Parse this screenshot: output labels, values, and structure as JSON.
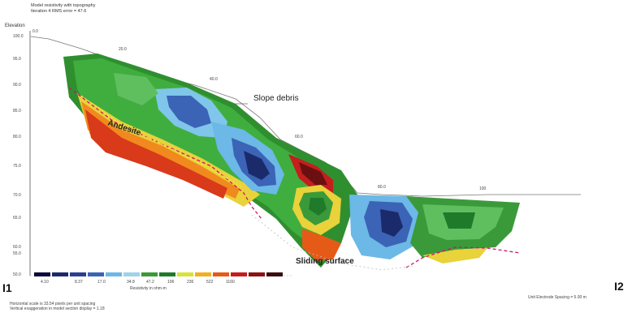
{
  "header": {
    "line1": "Model resistivity with topography",
    "line2": "Iteration 4 RMS error = 47.6"
  },
  "axis": {
    "title": "Elevation",
    "ticks": [
      "100.0",
      "95.0",
      "90.0",
      "85.0",
      "80.0",
      "75.0",
      "70.0",
      "65.0",
      "60.0",
      "55.0",
      "50.0"
    ],
    "distance_labels": [
      "0.0",
      "20.0",
      "40.0",
      "60.0",
      "80.0",
      "100"
    ]
  },
  "annotations": {
    "slope_debris": "Slope debris",
    "andesite": "Andesite",
    "sliding_surface": "Sliding surface"
  },
  "legend": {
    "values": [
      "4.10",
      "8.37",
      "17.0",
      "34.8",
      "47.2",
      "106",
      "236",
      "522",
      "1160"
    ],
    "title": "Resistivity in ohm-m",
    "colors": [
      "#0a0a3c",
      "#1b2a6a",
      "#2a3f8f",
      "#3b63b6",
      "#6cb8e6",
      "#9ed3ea",
      "#3a9a3a",
      "#1f7a2a",
      "#d8e23a",
      "#f1b021",
      "#e65a18",
      "#c41e1e",
      "#8a1414",
      "#3a0e0e"
    ]
  },
  "profile_labels": {
    "start": "I1",
    "end": "I2"
  },
  "footer": {
    "line1": "Horizontal scale is 33.54 pixels per unit spacing",
    "line2": "Vertical exaggeration in model section display = 1.18"
  },
  "unit_spacing": "Unit Electrode Spacing = 5.00 m"
}
